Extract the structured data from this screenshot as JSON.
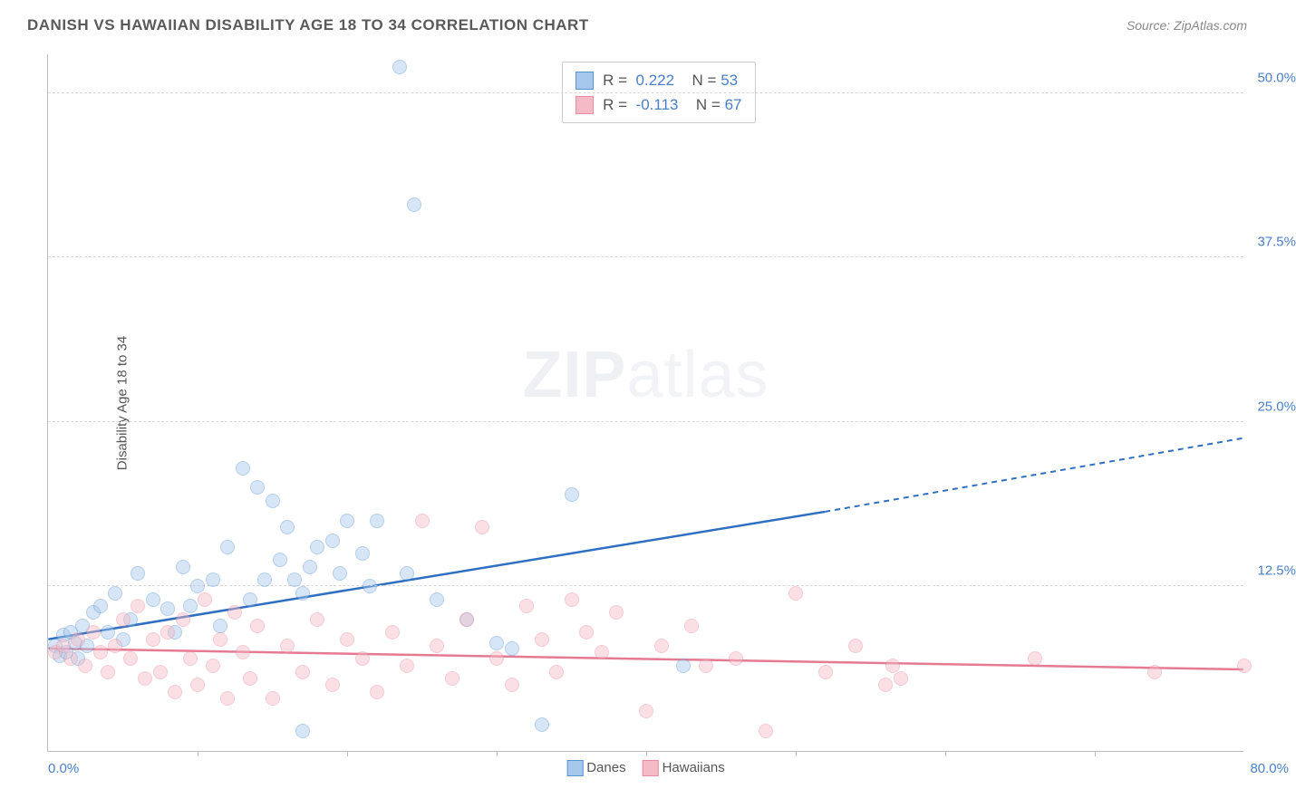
{
  "title": "DANISH VS HAWAIIAN DISABILITY AGE 18 TO 34 CORRELATION CHART",
  "source": "Source: ZipAtlas.com",
  "ylabel": "Disability Age 18 to 34",
  "watermark_bold": "ZIP",
  "watermark_light": "atlas",
  "chart": {
    "type": "scatter",
    "xlim": [
      0,
      80
    ],
    "ylim": [
      0,
      53
    ],
    "xlabel_min": "0.0%",
    "xlabel_max": "80.0%",
    "xtick_positions": [
      10,
      20,
      30,
      40,
      50,
      60,
      70
    ],
    "ytick_positions": [
      12.5,
      25.0,
      37.5,
      50.0
    ],
    "ytick_labels": [
      "12.5%",
      "25.0%",
      "37.5%",
      "50.0%"
    ],
    "grid_color": "#d8d8d8",
    "axis_color": "#bbbbbb",
    "background_color": "#ffffff",
    "point_radius": 8,
    "point_opacity": 0.45,
    "series": [
      {
        "name": "Danes",
        "fill": "#a6c8ec",
        "stroke": "#5a93d4",
        "line_color": "#2f6fc0",
        "trend": {
          "x1": 0,
          "y1": 8.5,
          "x2": 52,
          "y2": 18.2,
          "x2_dash": 80,
          "y2_dash": 23.8
        },
        "stats": {
          "R": "0.222",
          "N": "53"
        },
        "points": [
          [
            0.5,
            8.0
          ],
          [
            0.8,
            7.2
          ],
          [
            1.0,
            8.8
          ],
          [
            1.2,
            7.5
          ],
          [
            1.5,
            9.0
          ],
          [
            1.8,
            8.2
          ],
          [
            2.0,
            7.0
          ],
          [
            2.3,
            9.5
          ],
          [
            2.6,
            8.0
          ],
          [
            3.0,
            10.5
          ],
          [
            3.5,
            11.0
          ],
          [
            4.0,
            9.0
          ],
          [
            4.5,
            12.0
          ],
          [
            5.0,
            8.5
          ],
          [
            5.5,
            10.0
          ],
          [
            6.0,
            13.5
          ],
          [
            7.0,
            11.5
          ],
          [
            8.0,
            10.8
          ],
          [
            8.5,
            9.0
          ],
          [
            9.0,
            14.0
          ],
          [
            9.5,
            11.0
          ],
          [
            10.0,
            12.5
          ],
          [
            11.0,
            13.0
          ],
          [
            11.5,
            9.5
          ],
          [
            12.0,
            15.5
          ],
          [
            13.0,
            21.5
          ],
          [
            13.5,
            11.5
          ],
          [
            14.0,
            20.0
          ],
          [
            14.5,
            13.0
          ],
          [
            15.0,
            19.0
          ],
          [
            15.5,
            14.5
          ],
          [
            16.0,
            17.0
          ],
          [
            16.5,
            13.0
          ],
          [
            17.0,
            12.0
          ],
          [
            17.5,
            14.0
          ],
          [
            18.0,
            15.5
          ],
          [
            19.0,
            16.0
          ],
          [
            19.5,
            13.5
          ],
          [
            20.0,
            17.5
          ],
          [
            21.0,
            15.0
          ],
          [
            21.5,
            12.5
          ],
          [
            22.0,
            17.5
          ],
          [
            23.5,
            52.0
          ],
          [
            24.0,
            13.5
          ],
          [
            24.5,
            41.5
          ],
          [
            26.0,
            11.5
          ],
          [
            28.0,
            10.0
          ],
          [
            30.0,
            8.2
          ],
          [
            31.0,
            7.8
          ],
          [
            33.0,
            2.0
          ],
          [
            35.0,
            19.5
          ],
          [
            42.5,
            6.5
          ],
          [
            17.0,
            1.5
          ]
        ]
      },
      {
        "name": "Hawaiians",
        "fill": "#f4bac6",
        "stroke": "#e98ca0",
        "line_color": "#e57b93",
        "trend": {
          "x1": 0,
          "y1": 7.8,
          "x2": 80,
          "y2": 6.2
        },
        "stats": {
          "R": "-0.113",
          "N": "67"
        },
        "points": [
          [
            0.5,
            7.5
          ],
          [
            1.0,
            8.0
          ],
          [
            1.5,
            7.0
          ],
          [
            2.0,
            8.5
          ],
          [
            2.5,
            6.5
          ],
          [
            3.0,
            9.0
          ],
          [
            3.5,
            7.5
          ],
          [
            4.0,
            6.0
          ],
          [
            4.5,
            8.0
          ],
          [
            5.0,
            10.0
          ],
          [
            5.5,
            7.0
          ],
          [
            6.0,
            11.0
          ],
          [
            6.5,
            5.5
          ],
          [
            7.0,
            8.5
          ],
          [
            7.5,
            6.0
          ],
          [
            8.0,
            9.0
          ],
          [
            8.5,
            4.5
          ],
          [
            9.0,
            10.0
          ],
          [
            9.5,
            7.0
          ],
          [
            10.0,
            5.0
          ],
          [
            10.5,
            11.5
          ],
          [
            11.0,
            6.5
          ],
          [
            11.5,
            8.5
          ],
          [
            12.0,
            4.0
          ],
          [
            12.5,
            10.5
          ],
          [
            13.0,
            7.5
          ],
          [
            13.5,
            5.5
          ],
          [
            14.0,
            9.5
          ],
          [
            15.0,
            4.0
          ],
          [
            16.0,
            8.0
          ],
          [
            17.0,
            6.0
          ],
          [
            18.0,
            10.0
          ],
          [
            19.0,
            5.0
          ],
          [
            20.0,
            8.5
          ],
          [
            21.0,
            7.0
          ],
          [
            22.0,
            4.5
          ],
          [
            23.0,
            9.0
          ],
          [
            24.0,
            6.5
          ],
          [
            25.0,
            17.5
          ],
          [
            26.0,
            8.0
          ],
          [
            27.0,
            5.5
          ],
          [
            28.0,
            10.0
          ],
          [
            29.0,
            17.0
          ],
          [
            30.0,
            7.0
          ],
          [
            31.0,
            5.0
          ],
          [
            32.0,
            11.0
          ],
          [
            33.0,
            8.5
          ],
          [
            34.0,
            6.0
          ],
          [
            35.0,
            11.5
          ],
          [
            36.0,
            9.0
          ],
          [
            37.0,
            7.5
          ],
          [
            38.0,
            10.5
          ],
          [
            40.0,
            3.0
          ],
          [
            41.0,
            8.0
          ],
          [
            43.0,
            9.5
          ],
          [
            44.0,
            6.5
          ],
          [
            46.0,
            7.0
          ],
          [
            48.0,
            1.5
          ],
          [
            50.0,
            12.0
          ],
          [
            52.0,
            6.0
          ],
          [
            54.0,
            8.0
          ],
          [
            56.0,
            5.0
          ],
          [
            56.5,
            6.5
          ],
          [
            57.0,
            5.5
          ],
          [
            66.0,
            7.0
          ],
          [
            74.0,
            6.0
          ],
          [
            80.0,
            6.5
          ]
        ]
      }
    ]
  },
  "legend_bottom": [
    {
      "label": "Danes",
      "fill": "#a6c8ec",
      "stroke": "#5a93d4"
    },
    {
      "label": "Hawaiians",
      "fill": "#f4bac6",
      "stroke": "#e98ca0"
    }
  ]
}
